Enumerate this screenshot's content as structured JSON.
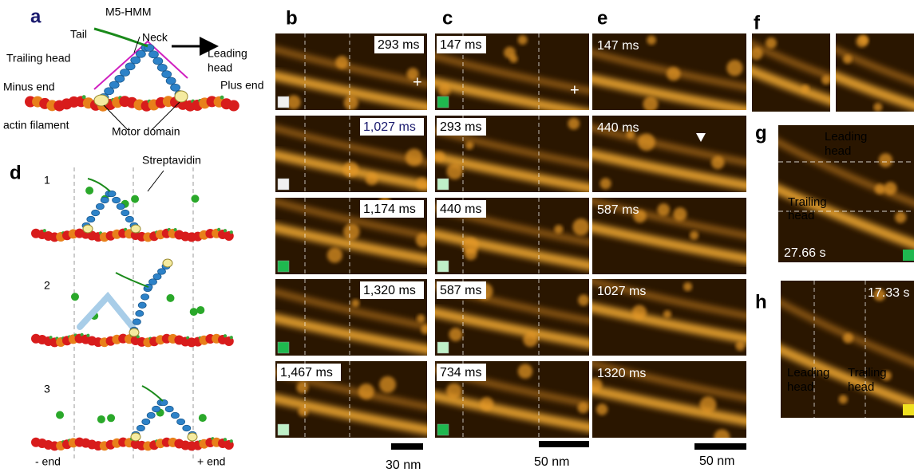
{
  "panel_labels": {
    "a": "a",
    "b": "b",
    "c": "c",
    "d": "d",
    "e": "e",
    "f": "f",
    "g": "g",
    "h": "h"
  },
  "panel_a": {
    "title": "M5-HMM",
    "tail": "Tail",
    "neck": "Neck",
    "trailing_head": "Trailing head",
    "leading_head": [
      "Leading",
      "head"
    ],
    "minus_end": "Minus end",
    "plus_end": "Plus end",
    "actin_filament": "actin filament",
    "motor_domain": "Motor domain"
  },
  "panel_d": {
    "streptavidin": "Streptavidin",
    "steps": [
      "1",
      "2",
      "3"
    ],
    "minus_end": "- end",
    "plus_end": "+ end"
  },
  "panel_b": {
    "times": [
      "293 ms",
      "1,027 ms",
      "1,174 ms",
      "1,320 ms",
      "1,467 ms"
    ],
    "marker": "+",
    "scale_bar": "30 nm"
  },
  "panel_c": {
    "times": [
      "147 ms",
      "293 ms",
      "440 ms",
      "587 ms",
      "734 ms"
    ],
    "marker": "+",
    "scale_bar": "50 nm"
  },
  "panel_e": {
    "times": [
      "147 ms",
      "440 ms",
      "587 ms",
      "1027 ms",
      "1320 ms"
    ],
    "scale_bar": "50 nm"
  },
  "panel_g": {
    "leading_head": [
      "Leading",
      "head"
    ],
    "trailing_head": [
      "Trailing",
      "head"
    ],
    "time": "27.66 s"
  },
  "panel_h": {
    "time": "17.33 s",
    "leading_head": [
      "Leading",
      "head"
    ],
    "trailing_head": [
      "Trailing",
      "head"
    ]
  }
}
